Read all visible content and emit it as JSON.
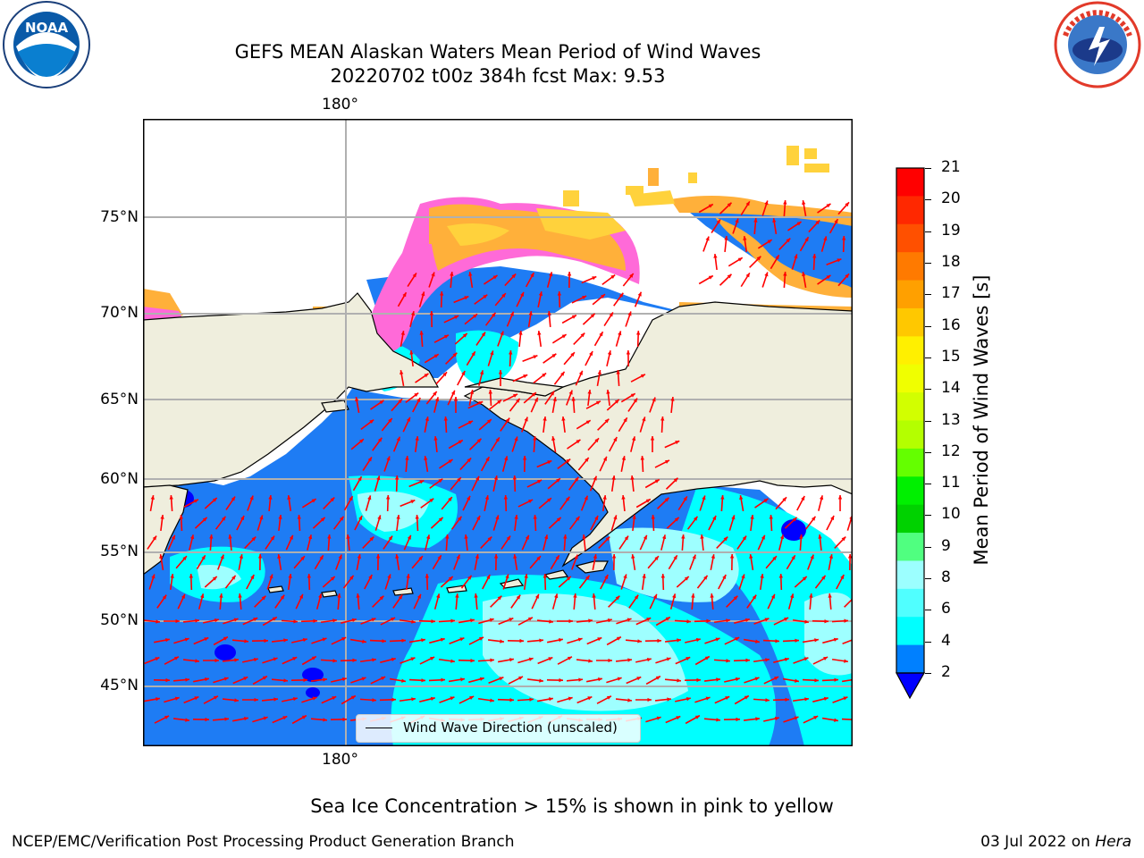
{
  "header": {
    "title_line1": "GEFS MEAN Alaskan Waters Mean Period of Wind Waves",
    "title_line2": "20220702 t00z 384h fcst   Max: 9.53"
  },
  "logos": {
    "noaa_text": "NOAA",
    "noaa_ring_text": "NATIONAL OCEANIC AND ATMOSPHERIC ADMINISTRATION · U.S. DEPARTMENT OF COMMERCE",
    "nws_ring_text": "NATIONAL WEATHER SERVICE"
  },
  "map": {
    "lon_label_top": "180°",
    "lon_label_bottom": "180°",
    "lat_labels": [
      "75°N",
      "70°N",
      "65°N",
      "60°N",
      "55°N",
      "50°N",
      "45°N"
    ],
    "legend_label": "Wind Wave Direction (unscaled)",
    "colors": {
      "land": "#efeedd",
      "ocean_base": "#1e7cf4",
      "dark_blue": "#0000ff",
      "cyan": "#00ffff",
      "light_cyan": "#9effff",
      "ice_yellow": "#ffd23c",
      "ice_orange": "#ffb03a",
      "ice_pink": "#ff6ad8",
      "ice_magenta": "#ff00ff",
      "arrow": "#ff0000",
      "grid": "#b0b0b0"
    }
  },
  "colorbar": {
    "label": "Mean Period of Wind Waves [s]",
    "ticks": [
      "21",
      "20",
      "19",
      "18",
      "17",
      "16",
      "15",
      "14",
      "13",
      "12",
      "11",
      "10",
      "9",
      "8",
      "6",
      "4",
      "2"
    ],
    "bands_top_to_bottom": [
      "#ff0000",
      "#ff2800",
      "#ff5000",
      "#ff7a00",
      "#ffa000",
      "#ffc800",
      "#fff000",
      "#f0ff00",
      "#d2ff00",
      "#b4ff00",
      "#64ff00",
      "#00f000",
      "#00d200",
      "#50ff80",
      "#9cffff",
      "#50ffff",
      "#00ffff",
      "#0080ff"
    ],
    "extend_color": "#0000ff"
  },
  "notes": {
    "ice_note": "Sea Ice Concentration > 15% is shown in pink to yellow"
  },
  "footer": {
    "left": "NCEP/EMC/Verification Post Processing Product Generation Branch",
    "right_date": "03 Jul 2022 on ",
    "right_machine": "Hera"
  }
}
